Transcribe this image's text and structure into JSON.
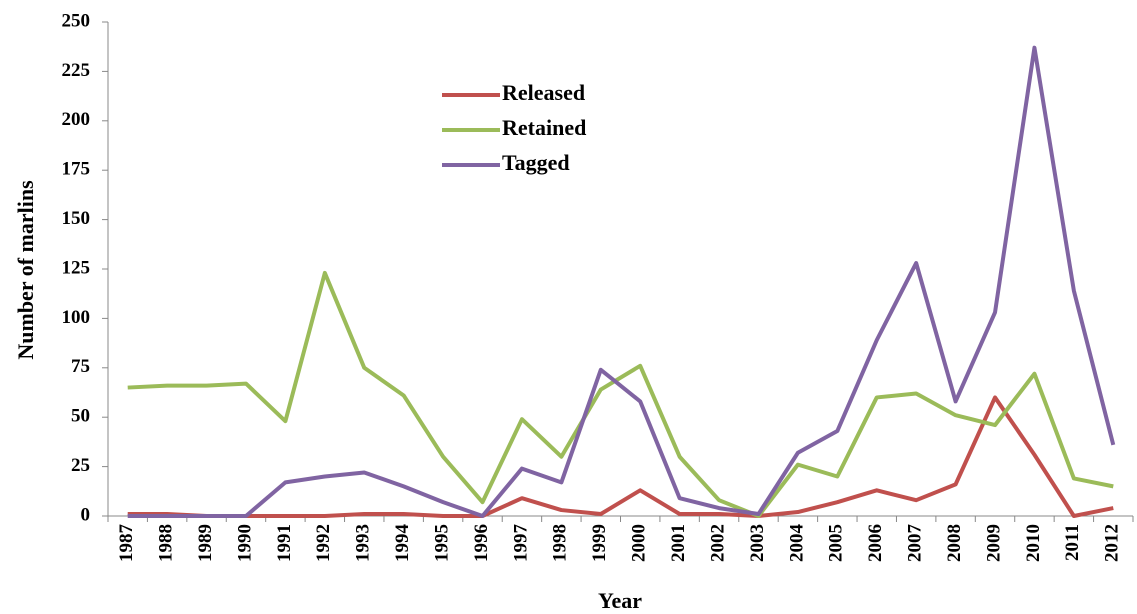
{
  "chart_data": {
    "type": "line",
    "x_label": "Year",
    "y_label": "Number of marlins",
    "categories": [
      "1987",
      "1988",
      "1989",
      "1990",
      "1991",
      "1992",
      "1993",
      "1994",
      "1995",
      "1996",
      "1997",
      "1998",
      "1999",
      "2000",
      "2001",
      "2002",
      "2003",
      "2004",
      "2005",
      "2006",
      "2007",
      "2008",
      "2009",
      "2010",
      "2011",
      "2012"
    ],
    "series": [
      {
        "name": "Released",
        "color": "#c0504d",
        "values": [
          1,
          1,
          0,
          0,
          0,
          0,
          1,
          1,
          0,
          0,
          9,
          3,
          1,
          13,
          1,
          1,
          0,
          2,
          7,
          13,
          8,
          16,
          60,
          31,
          0,
          4
        ]
      },
      {
        "name": "Retained",
        "color": "#9bbb59",
        "values": [
          65,
          66,
          66,
          67,
          48,
          123,
          75,
          61,
          30,
          7,
          49,
          30,
          64,
          76,
          30,
          8,
          0,
          26,
          20,
          60,
          62,
          51,
          46,
          72,
          19,
          15
        ]
      },
      {
        "name": "Tagged",
        "color": "#8064a2",
        "values": [
          0,
          0,
          0,
          0,
          17,
          20,
          22,
          15,
          7,
          0,
          24,
          17,
          74,
          58,
          9,
          4,
          1,
          32,
          43,
          89,
          128,
          58,
          103,
          237,
          114,
          36
        ]
      }
    ],
    "ylim": [
      0,
      250
    ],
    "yticks": [
      0,
      25,
      50,
      75,
      100,
      125,
      150,
      175,
      200,
      225,
      250
    ],
    "grid": false,
    "legend_position": "upper center"
  }
}
